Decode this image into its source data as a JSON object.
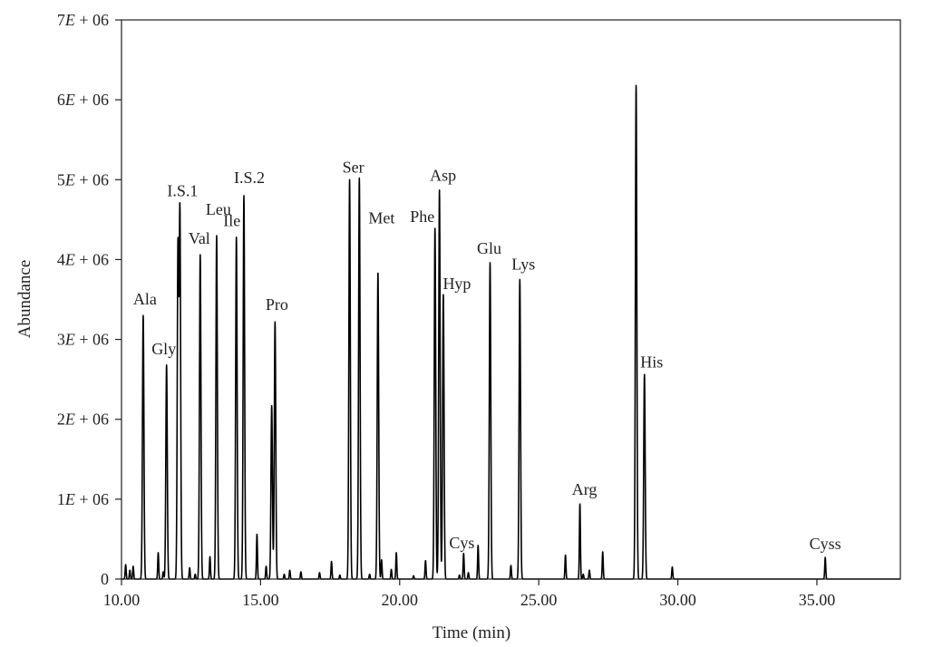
{
  "chart_data": {
    "type": "line",
    "title": "",
    "xlabel": "Time (min)",
    "ylabel": "Abundance",
    "xlim": [
      10.0,
      38.0
    ],
    "ylim": [
      0,
      7000000
    ],
    "grid": false,
    "x_ticks": [
      10,
      15,
      20,
      25,
      30,
      35
    ],
    "x_tick_labels": [
      "10.00",
      "15.00",
      "20.00",
      "25.00",
      "30.00",
      "35.00"
    ],
    "y_ticks": [
      0,
      1000000,
      2000000,
      3000000,
      4000000,
      5000000,
      6000000,
      7000000
    ],
    "y_tick_labels": [
      {
        "pre": "0",
        "italic": "",
        "post": ""
      },
      {
        "pre": "1",
        "italic": "E",
        "post": " + 06"
      },
      {
        "pre": "2",
        "italic": "E",
        "post": " + 06"
      },
      {
        "pre": "3",
        "italic": "E",
        "post": " + 06"
      },
      {
        "pre": "4",
        "italic": "E",
        "post": " + 06"
      },
      {
        "pre": "5",
        "italic": "E",
        "post": " + 06"
      },
      {
        "pre": "6",
        "italic": "E",
        "post": " + 06"
      },
      {
        "pre": "7",
        "italic": "E",
        "post": " + 06"
      }
    ],
    "labeled_peaks": [
      {
        "name": "Ala",
        "time": 10.78,
        "abundance": 3300000
      },
      {
        "name": "Gly",
        "time": 11.62,
        "abundance": 2680000
      },
      {
        "name": "I.S.1",
        "time": 12.1,
        "abundance": 4600000
      },
      {
        "name": "Val",
        "time": 12.83,
        "abundance": 4060000
      },
      {
        "name": "Leu",
        "time": 13.42,
        "abundance": 4300000
      },
      {
        "name": "Ile",
        "time": 14.13,
        "abundance": 4280000
      },
      {
        "name": "I.S.2",
        "time": 14.4,
        "abundance": 4800000
      },
      {
        "name": "Pro",
        "time": 15.52,
        "abundance": 3220000
      },
      {
        "name": "Ser",
        "time": 18.2,
        "abundance": 5000000
      },
      {
        "name": "Met",
        "time": 19.22,
        "abundance": 3830000
      },
      {
        "name": "Phe",
        "time": 21.27,
        "abundance": 4390000
      },
      {
        "name": "Asp",
        "time": 21.43,
        "abundance": 4870000
      },
      {
        "name": "Hyp",
        "time": 21.57,
        "abundance": 3560000
      },
      {
        "name": "Cys",
        "time": 22.3,
        "abundance": 320000
      },
      {
        "name": "Glu",
        "time": 23.25,
        "abundance": 3960000
      },
      {
        "name": "Lys",
        "time": 24.32,
        "abundance": 3750000
      },
      {
        "name": "Arg",
        "time": 26.48,
        "abundance": 940000
      },
      {
        "name": "His",
        "time": 28.8,
        "abundance": 2560000
      },
      {
        "name": "Cyss",
        "time": 35.3,
        "abundance": 270000
      }
    ],
    "unlabeled_peaks": [
      {
        "time": 10.15,
        "abundance": 180000
      },
      {
        "time": 10.3,
        "abundance": 110000
      },
      {
        "time": 10.42,
        "abundance": 160000
      },
      {
        "time": 11.32,
        "abundance": 330000
      },
      {
        "time": 11.5,
        "abundance": 90000
      },
      {
        "time": 12.03,
        "abundance": 4150000
      },
      {
        "time": 12.45,
        "abundance": 140000
      },
      {
        "time": 12.65,
        "abundance": 60000
      },
      {
        "time": 13.18,
        "abundance": 280000
      },
      {
        "time": 14.87,
        "abundance": 560000
      },
      {
        "time": 15.2,
        "abundance": 160000
      },
      {
        "time": 15.4,
        "abundance": 2170000
      },
      {
        "time": 15.85,
        "abundance": 60000
      },
      {
        "time": 16.05,
        "abundance": 110000
      },
      {
        "time": 16.45,
        "abundance": 90000
      },
      {
        "time": 17.12,
        "abundance": 80000
      },
      {
        "time": 17.55,
        "abundance": 220000
      },
      {
        "time": 17.85,
        "abundance": 50000
      },
      {
        "time": 18.55,
        "abundance": 5020000
      },
      {
        "time": 18.92,
        "abundance": 60000
      },
      {
        "time": 19.35,
        "abundance": 240000
      },
      {
        "time": 19.7,
        "abundance": 120000
      },
      {
        "time": 19.88,
        "abundance": 330000
      },
      {
        "time": 20.5,
        "abundance": 40000
      },
      {
        "time": 20.93,
        "abundance": 230000
      },
      {
        "time": 22.15,
        "abundance": 50000
      },
      {
        "time": 22.47,
        "abundance": 80000
      },
      {
        "time": 22.82,
        "abundance": 420000
      },
      {
        "time": 24.0,
        "abundance": 170000
      },
      {
        "time": 25.96,
        "abundance": 300000
      },
      {
        "time": 26.6,
        "abundance": 60000
      },
      {
        "time": 26.82,
        "abundance": 110000
      },
      {
        "time": 27.3,
        "abundance": 340000
      },
      {
        "time": 28.5,
        "abundance": 6180000
      },
      {
        "time": 29.8,
        "abundance": 150000
      }
    ]
  }
}
